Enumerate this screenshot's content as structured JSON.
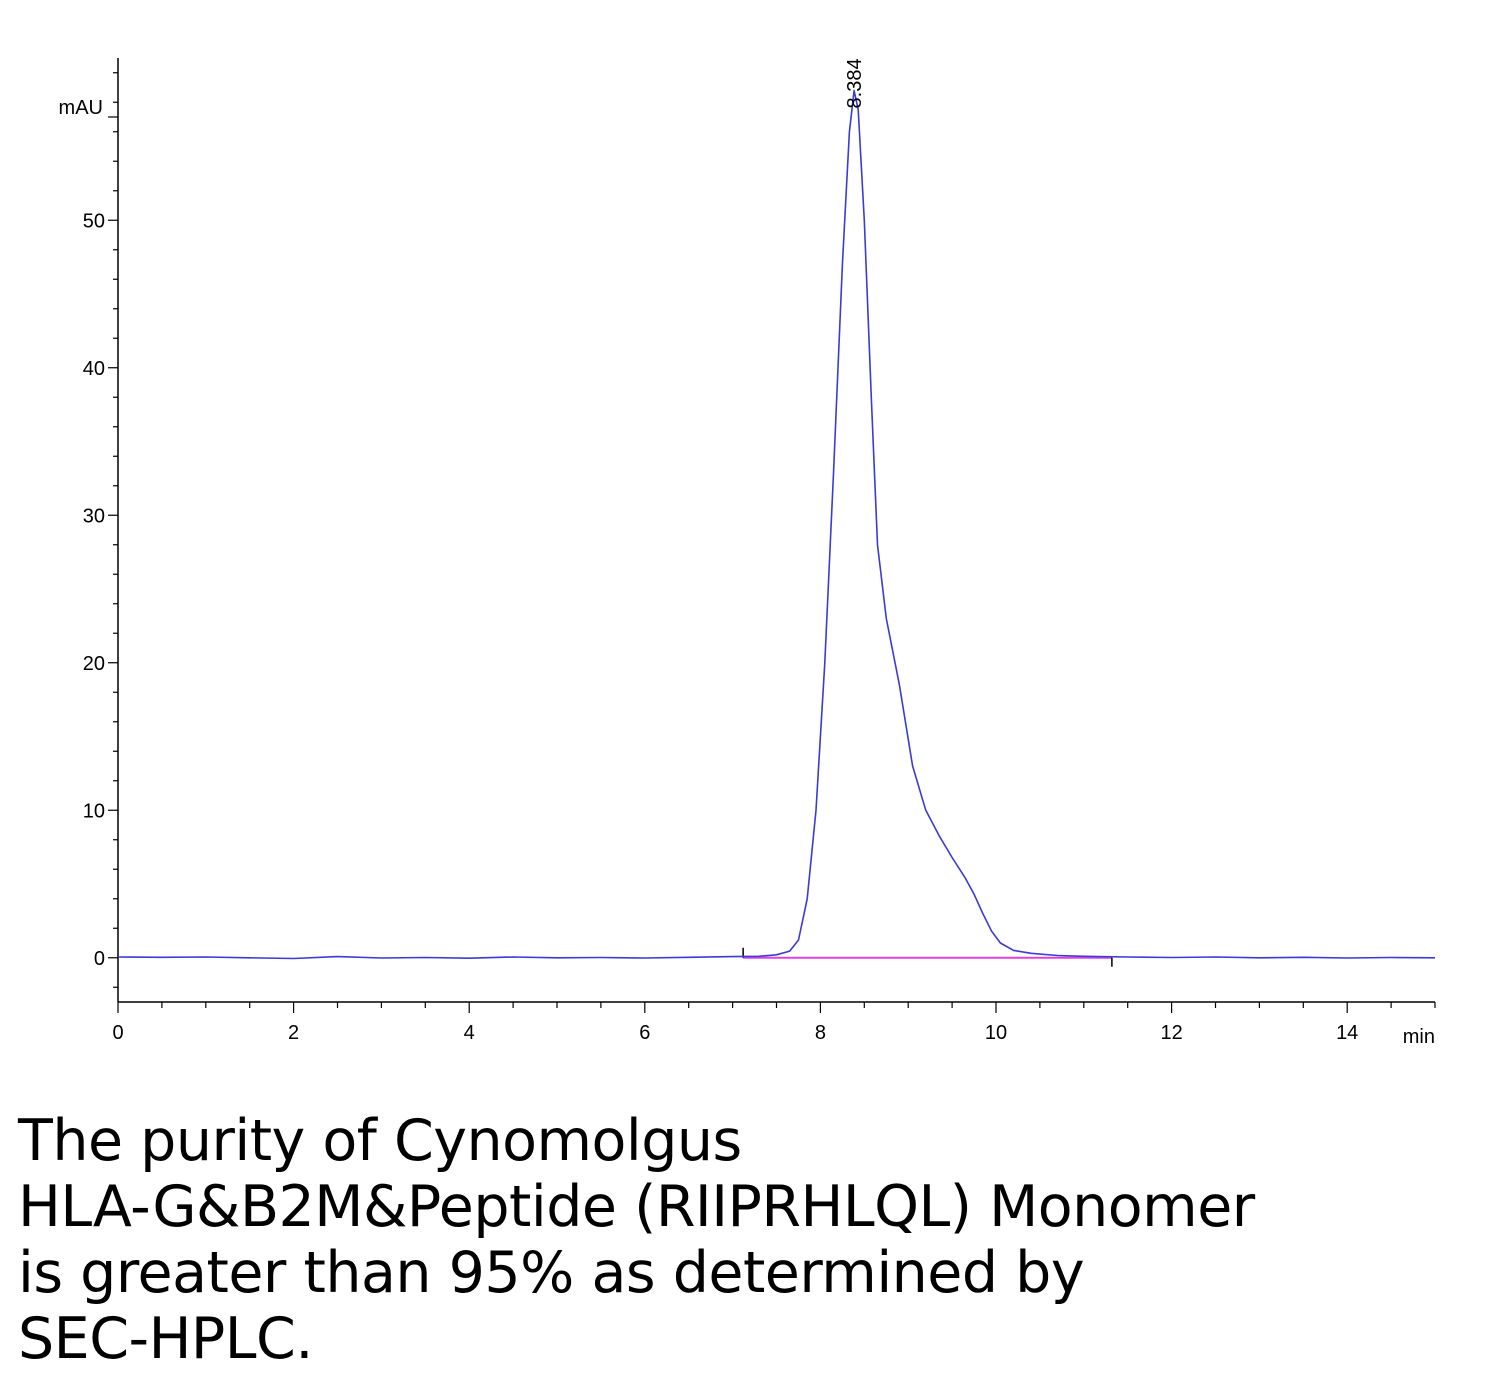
{
  "chart_data": {
    "type": "line",
    "ylabel": "mAU",
    "xlabel": "min",
    "xlim": [
      0,
      15
    ],
    "ylim": [
      -3,
      61
    ],
    "x_ticks": [
      0,
      2,
      4,
      6,
      8,
      10,
      12,
      14
    ],
    "y_ticks": [
      0,
      10,
      20,
      30,
      40,
      50
    ],
    "peak_label": "8.384",
    "peak": {
      "x": 8.384,
      "y": 58.8
    },
    "baseline_segment": {
      "x": [
        7.12,
        11.32
      ],
      "y": [
        0,
        0
      ]
    },
    "series": [
      {
        "color": "#3a3ad8",
        "points": [
          [
            0,
            0.05
          ],
          [
            0.5,
            0.03
          ],
          [
            1.0,
            0.05
          ],
          [
            1.5,
            0.0
          ],
          [
            2.0,
            -0.05
          ],
          [
            2.5,
            0.08
          ],
          [
            3.0,
            -0.02
          ],
          [
            3.5,
            0.02
          ],
          [
            4.0,
            -0.03
          ],
          [
            4.5,
            0.05
          ],
          [
            5.0,
            0.0
          ],
          [
            5.5,
            0.02
          ],
          [
            6.0,
            -0.02
          ],
          [
            6.5,
            0.03
          ],
          [
            7.0,
            0.08
          ],
          [
            7.3,
            0.1
          ],
          [
            7.5,
            0.2
          ],
          [
            7.65,
            0.45
          ],
          [
            7.75,
            1.2
          ],
          [
            7.85,
            4.0
          ],
          [
            7.95,
            10.0
          ],
          [
            8.05,
            20.0
          ],
          [
            8.15,
            33.0
          ],
          [
            8.25,
            47.0
          ],
          [
            8.33,
            56.0
          ],
          [
            8.384,
            58.8
          ],
          [
            8.43,
            57.5
          ],
          [
            8.5,
            50.0
          ],
          [
            8.58,
            38.0
          ],
          [
            8.65,
            28.0
          ],
          [
            8.75,
            23.0
          ],
          [
            8.9,
            18.5
          ],
          [
            9.05,
            13.0
          ],
          [
            9.2,
            10.0
          ],
          [
            9.35,
            8.3
          ],
          [
            9.5,
            6.8
          ],
          [
            9.65,
            5.4
          ],
          [
            9.75,
            4.3
          ],
          [
            9.85,
            3.0
          ],
          [
            9.95,
            1.8
          ],
          [
            10.05,
            1.0
          ],
          [
            10.2,
            0.5
          ],
          [
            10.4,
            0.3
          ],
          [
            10.7,
            0.15
          ],
          [
            11.0,
            0.1
          ],
          [
            11.5,
            0.05
          ],
          [
            12.0,
            0.02
          ],
          [
            12.5,
            0.05
          ],
          [
            13.0,
            0.0
          ],
          [
            13.5,
            0.03
          ],
          [
            14.0,
            -0.02
          ],
          [
            14.5,
            0.02
          ],
          [
            15.0,
            0.0
          ]
        ]
      }
    ],
    "baseline_color": "#e040e0",
    "axis_color": "#000000"
  },
  "caption": {
    "lines": [
      "The purity of Cynomolgus",
      "HLA-G&B2M&Peptide (RIIPRHLQL) Monomer",
      "is greater than 95% as determined by",
      "SEC-HPLC."
    ]
  }
}
